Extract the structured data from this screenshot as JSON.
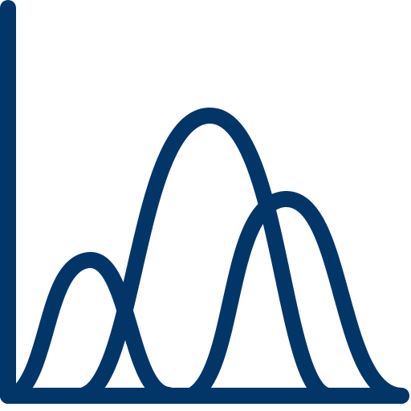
{
  "icon": {
    "name": "bell-curve-distribution-icon",
    "stroke_color": "#033668",
    "background_color": "#ffffff"
  }
}
